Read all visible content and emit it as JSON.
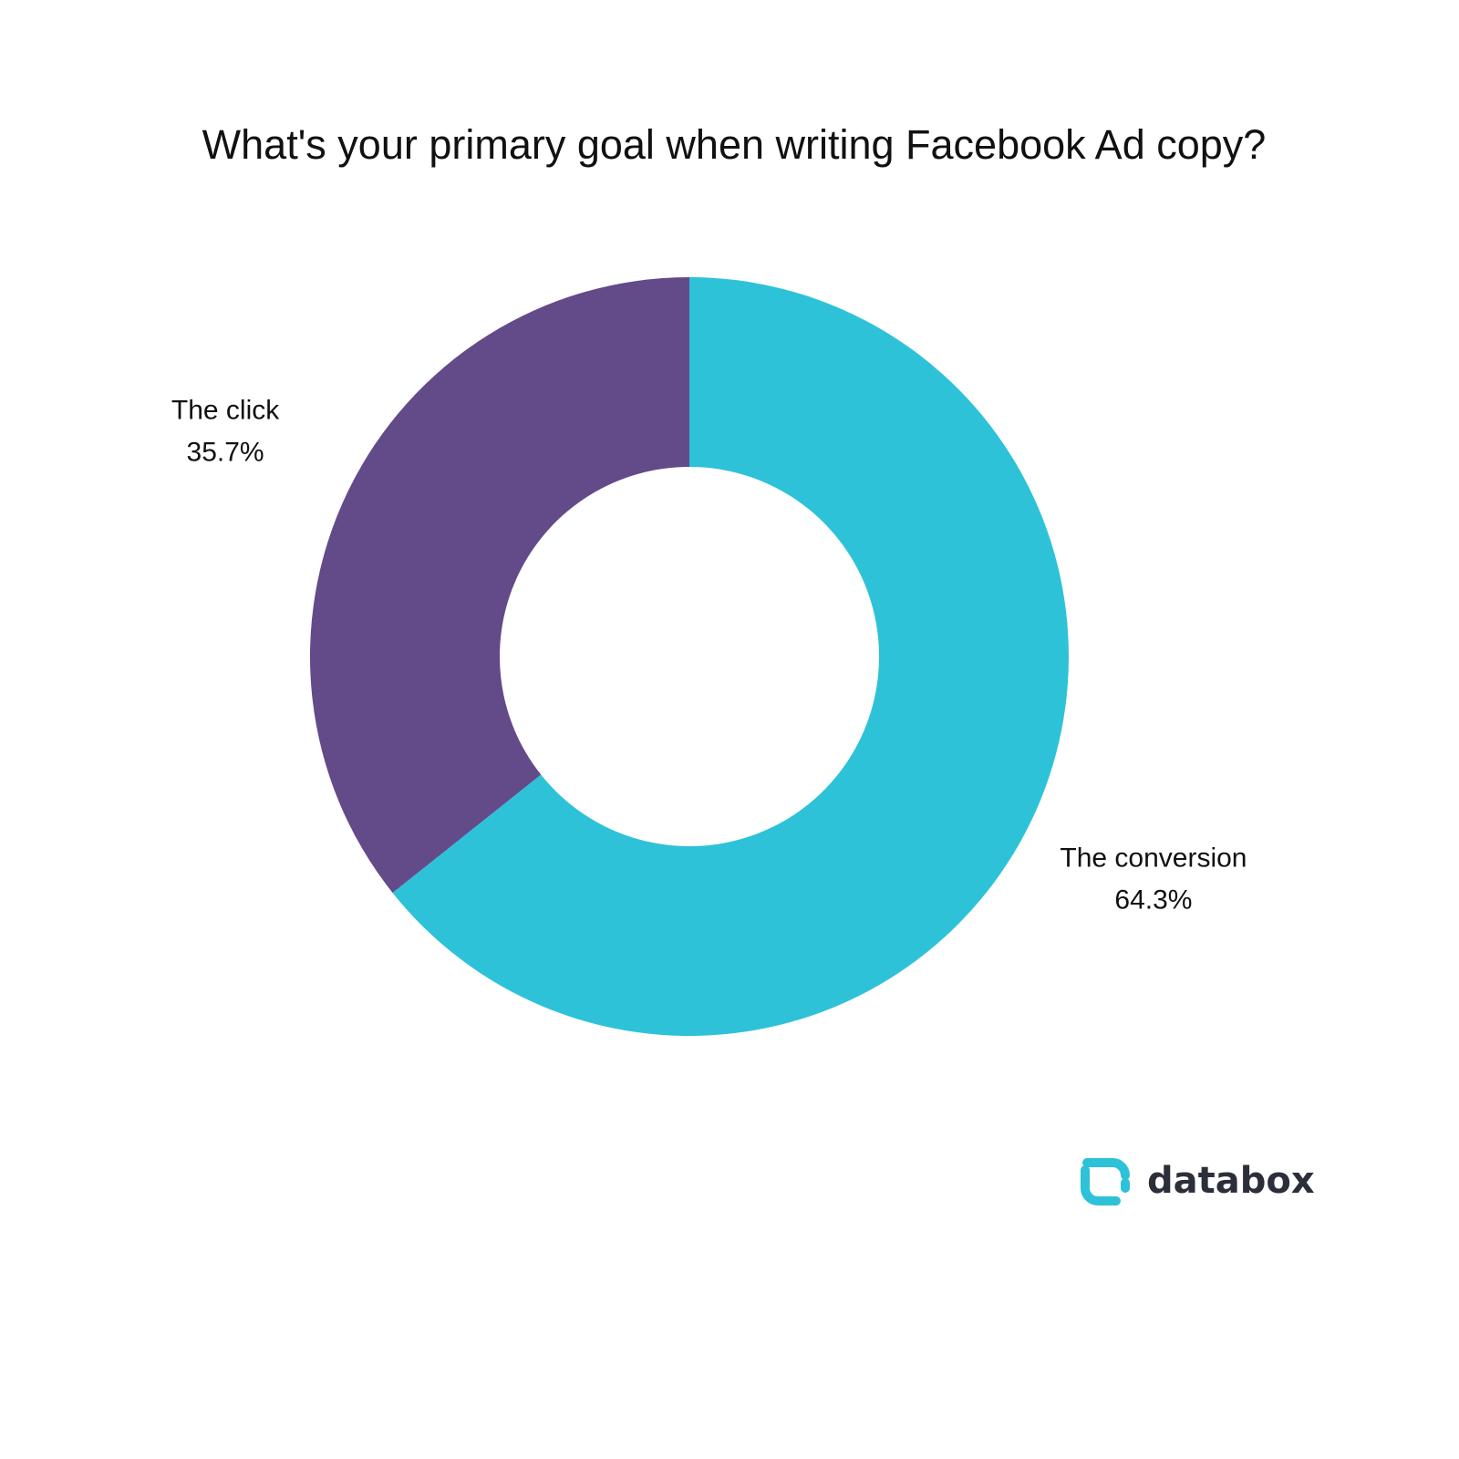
{
  "chart_data": {
    "type": "donut",
    "title": "What's your primary goal when writing Facebook Ad copy?",
    "categories": [
      "The conversion",
      "The click"
    ],
    "values": [
      64.3,
      35.7
    ],
    "value_labels": [
      "64.3%",
      "35.7%"
    ],
    "colors": [
      "#2ec2d9",
      "#634a89"
    ],
    "brand": "databox"
  }
}
